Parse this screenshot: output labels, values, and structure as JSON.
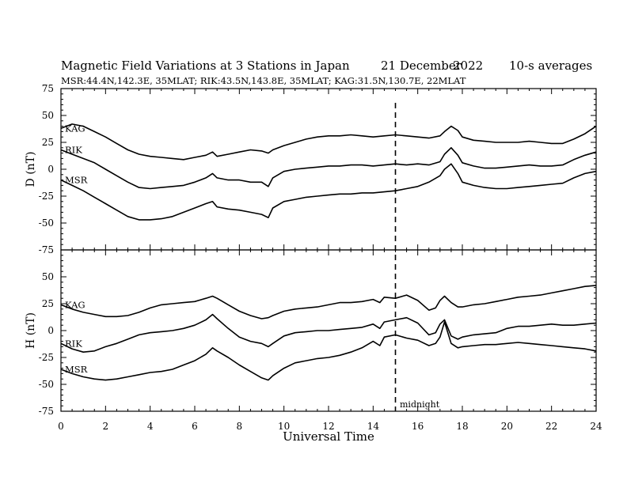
{
  "header": {
    "title": "Magnetic Field Variations at 3 Stations in Japan",
    "date_day": "21 December",
    "date_year": "2022",
    "averaging": "10-s averages",
    "stations_line": "MSR:44.4N,142.3E, 35MLAT;  RIK:43.5N,143.8E, 35MLAT;  KAG:31.5N,130.7E, 22MLAT"
  },
  "midnight_label": "midnight",
  "chart_data": [
    {
      "type": "line",
      "panel": "top",
      "ylabel": "D (nT)",
      "xlabel": "",
      "xlim": [
        0,
        24
      ],
      "ylim": [
        -75,
        75
      ],
      "yticks": [
        75,
        50,
        25,
        0,
        -25,
        -50,
        -75
      ],
      "xticks": [
        0,
        2,
        4,
        6,
        8,
        10,
        12,
        14,
        16,
        18,
        20,
        22,
        24
      ],
      "midnight_ut": 15,
      "series": [
        {
          "name": "KAG",
          "x": [
            0,
            0.5,
            1,
            1.5,
            2,
            2.5,
            3,
            3.5,
            4,
            4.5,
            5,
            5.5,
            6,
            6.5,
            6.8,
            7,
            7.5,
            8,
            8.5,
            9,
            9.3,
            9.5,
            10,
            10.5,
            11,
            11.5,
            12,
            12.5,
            13,
            13.5,
            14,
            14.5,
            15,
            15.5,
            16,
            16.5,
            17,
            17.2,
            17.5,
            17.8,
            18,
            18.5,
            19,
            19.5,
            20,
            20.5,
            21,
            21.5,
            22,
            22.5,
            23,
            23.5,
            24
          ],
          "y": [
            38,
            42,
            40,
            35,
            30,
            24,
            18,
            14,
            12,
            11,
            10,
            9,
            11,
            13,
            16,
            12,
            14,
            16,
            18,
            17,
            15,
            18,
            22,
            25,
            28,
            30,
            31,
            31,
            32,
            31,
            30,
            31,
            32,
            31,
            30,
            29,
            31,
            35,
            40,
            36,
            30,
            27,
            26,
            25,
            25,
            25,
            26,
            25,
            24,
            24,
            28,
            33,
            40
          ]
        },
        {
          "name": "RIK",
          "x": [
            0,
            0.5,
            1,
            1.5,
            2,
            2.5,
            3,
            3.5,
            4,
            4.5,
            5,
            5.5,
            6,
            6.5,
            6.8,
            7,
            7.5,
            8,
            8.5,
            9,
            9.3,
            9.5,
            10,
            10.5,
            11,
            11.5,
            12,
            12.5,
            13,
            13.5,
            14,
            14.5,
            15,
            15.5,
            16,
            16.5,
            17,
            17.2,
            17.5,
            17.8,
            18,
            18.5,
            19,
            19.5,
            20,
            20.5,
            21,
            21.5,
            22,
            22.5,
            23,
            23.5,
            24
          ],
          "y": [
            18,
            14,
            10,
            6,
            0,
            -6,
            -12,
            -17,
            -18,
            -17,
            -16,
            -15,
            -12,
            -8,
            -4,
            -8,
            -10,
            -10,
            -12,
            -12,
            -16,
            -8,
            -2,
            0,
            1,
            2,
            3,
            3,
            4,
            4,
            3,
            4,
            5,
            4,
            5,
            4,
            7,
            14,
            20,
            13,
            6,
            3,
            1,
            1,
            2,
            3,
            4,
            3,
            3,
            4,
            9,
            13,
            16
          ]
        },
        {
          "name": "MSR",
          "x": [
            0,
            0.5,
            1,
            1.5,
            2,
            2.5,
            3,
            3.5,
            4,
            4.5,
            5,
            5.5,
            6,
            6.5,
            6.8,
            7,
            7.5,
            8,
            8.5,
            9,
            9.3,
            9.5,
            10,
            10.5,
            11,
            11.5,
            12,
            12.5,
            13,
            13.5,
            14,
            14.5,
            15,
            15.5,
            16,
            16.5,
            17,
            17.2,
            17.5,
            17.8,
            18,
            18.5,
            19,
            19.5,
            20,
            20.5,
            21,
            21.5,
            22,
            22.5,
            23,
            23.5,
            24
          ],
          "y": [
            -10,
            -15,
            -20,
            -26,
            -32,
            -38,
            -44,
            -47,
            -47,
            -46,
            -44,
            -40,
            -36,
            -32,
            -30,
            -35,
            -37,
            -38,
            -40,
            -42,
            -45,
            -36,
            -30,
            -28,
            -26,
            -25,
            -24,
            -23,
            -23,
            -22,
            -22,
            -21,
            -20,
            -18,
            -16,
            -12,
            -6,
            0,
            5,
            -4,
            -12,
            -15,
            -17,
            -18,
            -18,
            -17,
            -16,
            -15,
            -14,
            -13,
            -8,
            -4,
            -2
          ]
        }
      ]
    },
    {
      "type": "line",
      "panel": "bottom",
      "ylabel": "H (nT)",
      "xlabel": "Universal Time",
      "xlim": [
        0,
        24
      ],
      "ylim": [
        -75,
        75
      ],
      "yticks": [
        50,
        25,
        0,
        -25,
        -50,
        -75
      ],
      "xticks": [
        0,
        2,
        4,
        6,
        8,
        10,
        12,
        14,
        16,
        18,
        20,
        22,
        24
      ],
      "midnight_ut": 15,
      "series": [
        {
          "name": "KAG",
          "x": [
            0,
            0.5,
            1,
            1.5,
            2,
            2.5,
            3,
            3.5,
            4,
            4.5,
            5,
            5.5,
            6,
            6.5,
            6.8,
            7,
            7.5,
            8,
            8.5,
            9,
            9.3,
            9.5,
            10,
            10.5,
            11,
            11.5,
            12,
            12.5,
            13,
            13.5,
            14,
            14.3,
            14.5,
            15,
            15.5,
            16,
            16.5,
            16.8,
            17,
            17.2,
            17.5,
            17.8,
            18,
            18.5,
            19,
            19.5,
            20,
            20.5,
            21,
            21.5,
            22,
            22.5,
            23,
            23.5,
            24
          ],
          "y": [
            24,
            20,
            17,
            15,
            13,
            13,
            14,
            17,
            21,
            24,
            25,
            26,
            27,
            30,
            32,
            30,
            24,
            18,
            14,
            11,
            12,
            14,
            18,
            20,
            21,
            22,
            24,
            26,
            26,
            27,
            29,
            26,
            31,
            30,
            33,
            28,
            19,
            21,
            28,
            32,
            26,
            22,
            22,
            24,
            25,
            27,
            29,
            31,
            32,
            33,
            35,
            37,
            39,
            41,
            42
          ]
        },
        {
          "name": "RIK",
          "x": [
            0,
            0.5,
            1,
            1.5,
            2,
            2.5,
            3,
            3.5,
            4,
            4.5,
            5,
            5.5,
            6,
            6.5,
            6.8,
            7,
            7.5,
            8,
            8.5,
            9,
            9.3,
            9.5,
            10,
            10.5,
            11,
            11.5,
            12,
            12.5,
            13,
            13.5,
            14,
            14.3,
            14.5,
            15,
            15.5,
            16,
            16.5,
            16.8,
            17,
            17.2,
            17.5,
            17.8,
            18,
            18.5,
            19,
            19.5,
            20,
            20.5,
            21,
            21.5,
            22,
            22.5,
            23,
            23.5,
            24
          ],
          "y": [
            -12,
            -17,
            -20,
            -19,
            -15,
            -12,
            -8,
            -4,
            -2,
            -1,
            0,
            2,
            5,
            10,
            15,
            11,
            2,
            -6,
            -10,
            -12,
            -15,
            -12,
            -5,
            -2,
            -1,
            0,
            0,
            1,
            2,
            3,
            6,
            2,
            8,
            10,
            12,
            7,
            -4,
            -2,
            6,
            10,
            -5,
            -8,
            -6,
            -4,
            -3,
            -2,
            2,
            4,
            4,
            5,
            6,
            5,
            5,
            6,
            7
          ]
        },
        {
          "name": "MSR",
          "x": [
            0,
            0.5,
            1,
            1.5,
            2,
            2.5,
            3,
            3.5,
            4,
            4.5,
            5,
            5.5,
            6,
            6.5,
            6.8,
            7,
            7.5,
            8,
            8.5,
            9,
            9.3,
            9.5,
            10,
            10.5,
            11,
            11.5,
            12,
            12.5,
            13,
            13.5,
            14,
            14.3,
            14.5,
            15,
            15.5,
            16,
            16.5,
            16.8,
            17,
            17.2,
            17.5,
            17.8,
            18,
            18.5,
            19,
            19.5,
            20,
            20.5,
            21,
            21.5,
            22,
            22.5,
            23,
            23.5,
            24
          ],
          "y": [
            -36,
            -40,
            -43,
            -45,
            -46,
            -45,
            -43,
            -41,
            -39,
            -38,
            -36,
            -32,
            -28,
            -22,
            -16,
            -19,
            -25,
            -32,
            -38,
            -44,
            -46,
            -42,
            -35,
            -30,
            -28,
            -26,
            -25,
            -23,
            -20,
            -16,
            -10,
            -14,
            -6,
            -4,
            -7,
            -9,
            -14,
            -12,
            -6,
            8,
            -12,
            -16,
            -15,
            -14,
            -13,
            -13,
            -12,
            -11,
            -12,
            -13,
            -14,
            -15,
            -16,
            -17,
            -19
          ]
        }
      ]
    }
  ]
}
